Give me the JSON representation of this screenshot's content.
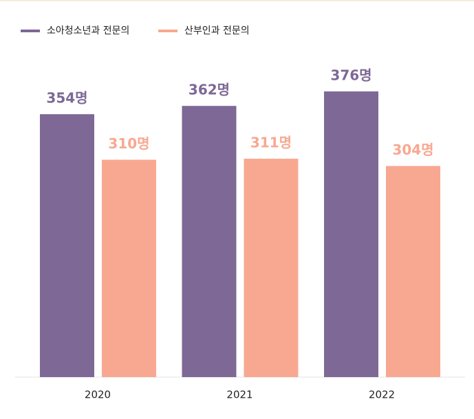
{
  "chart_data": {
    "type": "bar",
    "categories": [
      "2020",
      "2021",
      "2022"
    ],
    "series": [
      {
        "name": "소아청소년과 전문의",
        "color": "#7d6896",
        "values": [
          354,
          362,
          376
        ],
        "value_labels": [
          "354명",
          "362명",
          "376명"
        ]
      },
      {
        "name": "산부인과 전문의",
        "color": "#f8a891",
        "values": [
          310,
          311,
          304
        ],
        "value_labels": [
          "310명",
          "311명",
          "304명"
        ]
      }
    ],
    "ylim": [
      100,
      390
    ]
  }
}
